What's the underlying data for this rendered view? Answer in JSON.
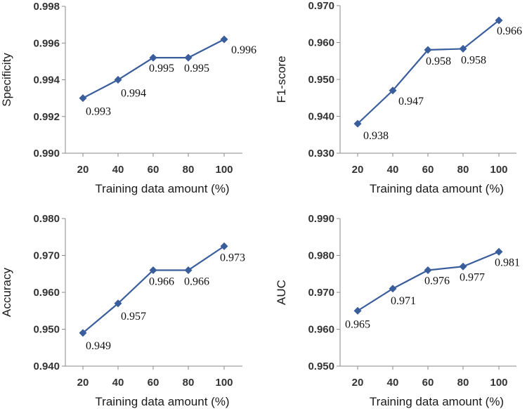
{
  "colors": {
    "series": "#3A5E9C",
    "axis": "#8a8a8a"
  },
  "chart_data": [
    {
      "type": "line",
      "ylabel": "Specificity",
      "xlabel": "Training data amount (%)",
      "x": [
        20,
        40,
        60,
        80,
        100
      ],
      "series": [
        {
          "values": [
            0.993,
            0.994,
            0.9952,
            0.9952,
            0.9962
          ]
        }
      ],
      "data_labels": [
        "0.993",
        "0.994",
        "0.995",
        "0.995",
        "0.996"
      ],
      "ylim": [
        0.99,
        0.998
      ],
      "yticks": [
        "0.990",
        "0.992",
        "0.994",
        "0.996",
        "0.998"
      ],
      "xticks": [
        "20",
        "40",
        "60",
        "80",
        "100"
      ],
      "marker": "diamond",
      "grid": false
    },
    {
      "type": "line",
      "ylabel": "F1-score",
      "xlabel": "Training data amount (%)",
      "x": [
        20,
        40,
        60,
        80,
        100
      ],
      "series": [
        {
          "values": [
            0.938,
            0.947,
            0.958,
            0.9583,
            0.966
          ]
        }
      ],
      "data_labels": [
        "0.938",
        "0.947",
        "0.958",
        "0.958",
        "0.966"
      ],
      "ylim": [
        0.93,
        0.97
      ],
      "yticks": [
        "0.930",
        "0.940",
        "0.950",
        "0.960",
        "0.970"
      ],
      "xticks": [
        "20",
        "40",
        "60",
        "80",
        "100"
      ],
      "marker": "diamond",
      "grid": false
    },
    {
      "type": "line",
      "ylabel": "Accuracy",
      "xlabel": "Training data amount (%)",
      "x": [
        20,
        40,
        60,
        80,
        100
      ],
      "series": [
        {
          "values": [
            0.949,
            0.957,
            0.966,
            0.966,
            0.9725
          ]
        }
      ],
      "data_labels": [
        "0.949",
        "0.957",
        "0.966",
        "0.966",
        "0.973"
      ],
      "ylim": [
        0.94,
        0.98
      ],
      "yticks": [
        "0.940",
        "0.950",
        "0.960",
        "0.970",
        "0.980"
      ],
      "xticks": [
        "20",
        "40",
        "60",
        "80",
        "100"
      ],
      "marker": "diamond",
      "grid": false
    },
    {
      "type": "line",
      "ylabel": "AUC",
      "xlabel": "Training data amount (%)",
      "x": [
        20,
        40,
        60,
        80,
        100
      ],
      "series": [
        {
          "values": [
            0.965,
            0.971,
            0.976,
            0.977,
            0.981
          ]
        }
      ],
      "data_labels": [
        "0.965",
        "0.971",
        "0.976",
        "0.977",
        "0.981"
      ],
      "ylim": [
        0.95,
        0.99
      ],
      "yticks": [
        "0.950",
        "0.960",
        "0.970",
        "0.980",
        "0.990"
      ],
      "xticks": [
        "20",
        "40",
        "60",
        "80",
        "100"
      ],
      "marker": "diamond",
      "grid": false
    }
  ]
}
